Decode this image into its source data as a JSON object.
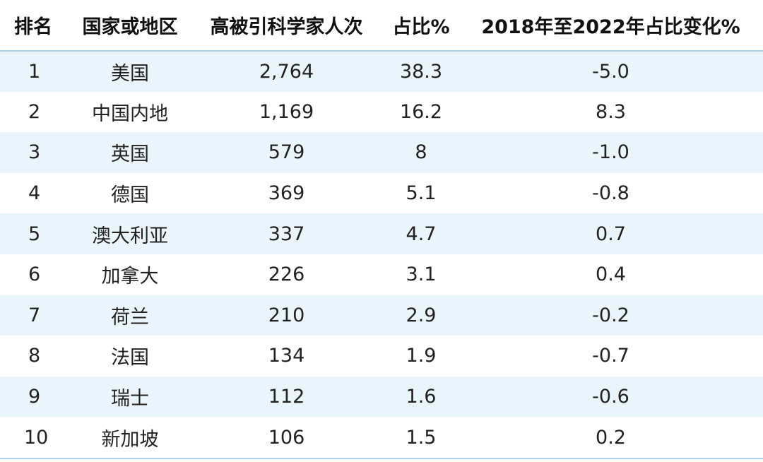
{
  "table": {
    "headers": {
      "rank": "排名",
      "region": "国家或地区",
      "count": "高被引科学家人次",
      "share": "占比%",
      "change": "2018年至2022年占比变化%"
    },
    "rows": [
      {
        "rank": "1",
        "region": "美国",
        "count": "2,764",
        "share": "38.3",
        "change": "-5.0"
      },
      {
        "rank": "2",
        "region": "中国内地",
        "count": "1,169",
        "share": "16.2",
        "change": "8.3"
      },
      {
        "rank": "3",
        "region": "英国",
        "count": "579",
        "share": "8",
        "change": "-1.0"
      },
      {
        "rank": "4",
        "region": "德国",
        "count": "369",
        "share": "5.1",
        "change": "-0.8"
      },
      {
        "rank": "5",
        "region": "澳大利亚",
        "count": "337",
        "share": "4.7",
        "change": "0.7"
      },
      {
        "rank": "6",
        "region": "加拿大",
        "count": "226",
        "share": "3.1",
        "change": "0.4"
      },
      {
        "rank": "7",
        "region": "荷兰",
        "count": "210",
        "share": "2.9",
        "change": "-0.2"
      },
      {
        "rank": "8",
        "region": "法国",
        "count": "134",
        "share": "1.9",
        "change": "-0.7"
      },
      {
        "rank": "9",
        "region": "瑞士",
        "count": "112",
        "share": "1.6",
        "change": "-0.6"
      },
      {
        "rank": "10",
        "region": "新加坡",
        "count": "106",
        "share": "1.5",
        "change": "0.2"
      }
    ]
  },
  "colors": {
    "stripe": "#e9f4fb",
    "rule": "#a9cfe6"
  }
}
